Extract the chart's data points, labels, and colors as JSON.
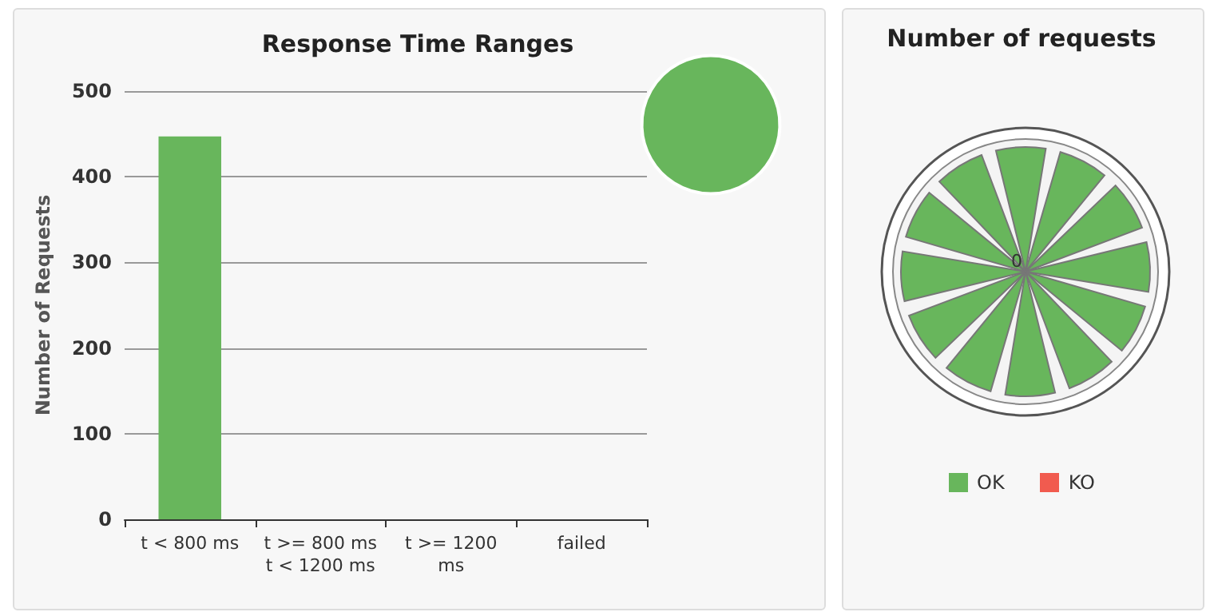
{
  "chart_data": [
    {
      "type": "bar",
      "title": "Response Time Ranges",
      "ylabel": "Number of Requests",
      "categories": [
        "t < 800 ms",
        "t >= 800 ms\nt < 1200 ms",
        "t >= 1200\nms",
        "failed"
      ],
      "values": [
        447,
        0,
        0,
        0
      ],
      "color": "#68b65c",
      "ylim": [
        0,
        500
      ],
      "yticks": [
        0,
        100,
        200,
        300,
        400,
        500
      ],
      "grid": "y",
      "legend": false
    },
    {
      "type": "pie",
      "categories": [
        null
      ],
      "values": [
        100
      ],
      "colors": [
        "#68b65c"
      ]
    },
    {
      "type": "other",
      "title": "Number of requests",
      "series": [
        {
          "name": "OK",
          "color": "#68b65c"
        },
        {
          "name": "KO",
          "color": "#f15b4f"
        }
      ],
      "annotations": [
        "0"
      ],
      "legend": "bottom"
    }
  ]
}
